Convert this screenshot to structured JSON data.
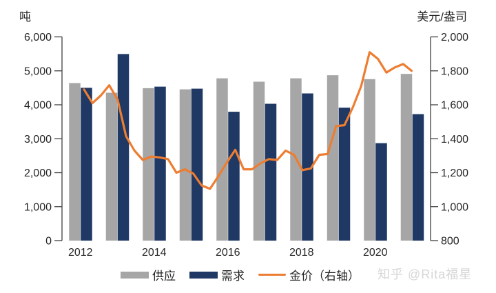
{
  "units": {
    "left": "吨",
    "right": "美元/盎司"
  },
  "legend": [
    {
      "label": "供应",
      "type": "bar",
      "color": "#a6a6a6"
    },
    {
      "label": "需求",
      "type": "bar",
      "color": "#1f3864"
    },
    {
      "label": "金价（右轴）",
      "type": "line",
      "color": "#ed7d31"
    }
  ],
  "watermark": "知乎 @Rita福星",
  "colors": {
    "supply_bar": "#a6a6a6",
    "demand_bar": "#1f3864",
    "gold_line": "#ed7d31",
    "axis": "#404040",
    "tick_text": "#262626"
  },
  "chart_data": {
    "type": "bar",
    "subtype": "dual-axis bar + line",
    "categories": [
      2012,
      2013,
      2014,
      2015,
      2016,
      2017,
      2018,
      2019,
      2020,
      2021
    ],
    "x_tick_labels": [
      "2012",
      "2014",
      "2016",
      "2018",
      "2020"
    ],
    "series": [
      {
        "name": "供应",
        "type": "bar",
        "axis": "left",
        "color": "#a6a6a6",
        "values": [
          4640,
          4355,
          4490,
          4455,
          4780,
          4680,
          4780,
          4870,
          4755,
          4910
        ]
      },
      {
        "name": "需求",
        "type": "bar",
        "axis": "left",
        "color": "#1f3864",
        "values": [
          4500,
          5495,
          4535,
          4475,
          3795,
          4030,
          4335,
          3915,
          2870,
          3725
        ]
      },
      {
        "name": "金价（右轴）",
        "type": "line",
        "axis": "right",
        "color": "#ed7d31",
        "x": [
          "2012Q1",
          "2012Q2",
          "2012Q3",
          "2012Q4",
          "2013Q1",
          "2013Q2",
          "2013Q3",
          "2013Q4",
          "2014Q1",
          "2014Q2",
          "2014Q3",
          "2014Q4",
          "2015Q1",
          "2015Q2",
          "2015Q3",
          "2015Q4",
          "2016Q1",
          "2016Q2",
          "2016Q3",
          "2016Q4",
          "2017Q1",
          "2017Q2",
          "2017Q3",
          "2017Q4",
          "2018Q1",
          "2018Q2",
          "2018Q3",
          "2018Q4",
          "2019Q1",
          "2019Q2",
          "2019Q3",
          "2019Q4",
          "2020Q1",
          "2020Q2",
          "2020Q3",
          "2020Q4",
          "2021Q1",
          "2021Q2",
          "2021Q3",
          "2021Q4"
        ],
        "values": [
          1690,
          1610,
          1655,
          1715,
          1630,
          1415,
          1330,
          1275,
          1295,
          1290,
          1280,
          1200,
          1220,
          1195,
          1125,
          1105,
          1180,
          1260,
          1335,
          1220,
          1220,
          1255,
          1280,
          1275,
          1330,
          1305,
          1215,
          1225,
          1305,
          1310,
          1475,
          1480,
          1585,
          1710,
          1910,
          1870,
          1790,
          1820,
          1840,
          1800
        ]
      }
    ],
    "left_axis": {
      "label": "吨",
      "min": 0,
      "max": 6000,
      "step": 1000,
      "tick_labels": [
        "0",
        "1,000",
        "2,000",
        "3,000",
        "4,000",
        "5,000",
        "6,000"
      ]
    },
    "right_axis": {
      "label": "美元/盎司",
      "min": 800,
      "max": 2000,
      "step": 200,
      "tick_labels": [
        "800",
        "1,000",
        "1,200",
        "1,400",
        "1,600",
        "1,800",
        "2,000"
      ]
    },
    "grid": false,
    "legend_position": "bottom"
  }
}
